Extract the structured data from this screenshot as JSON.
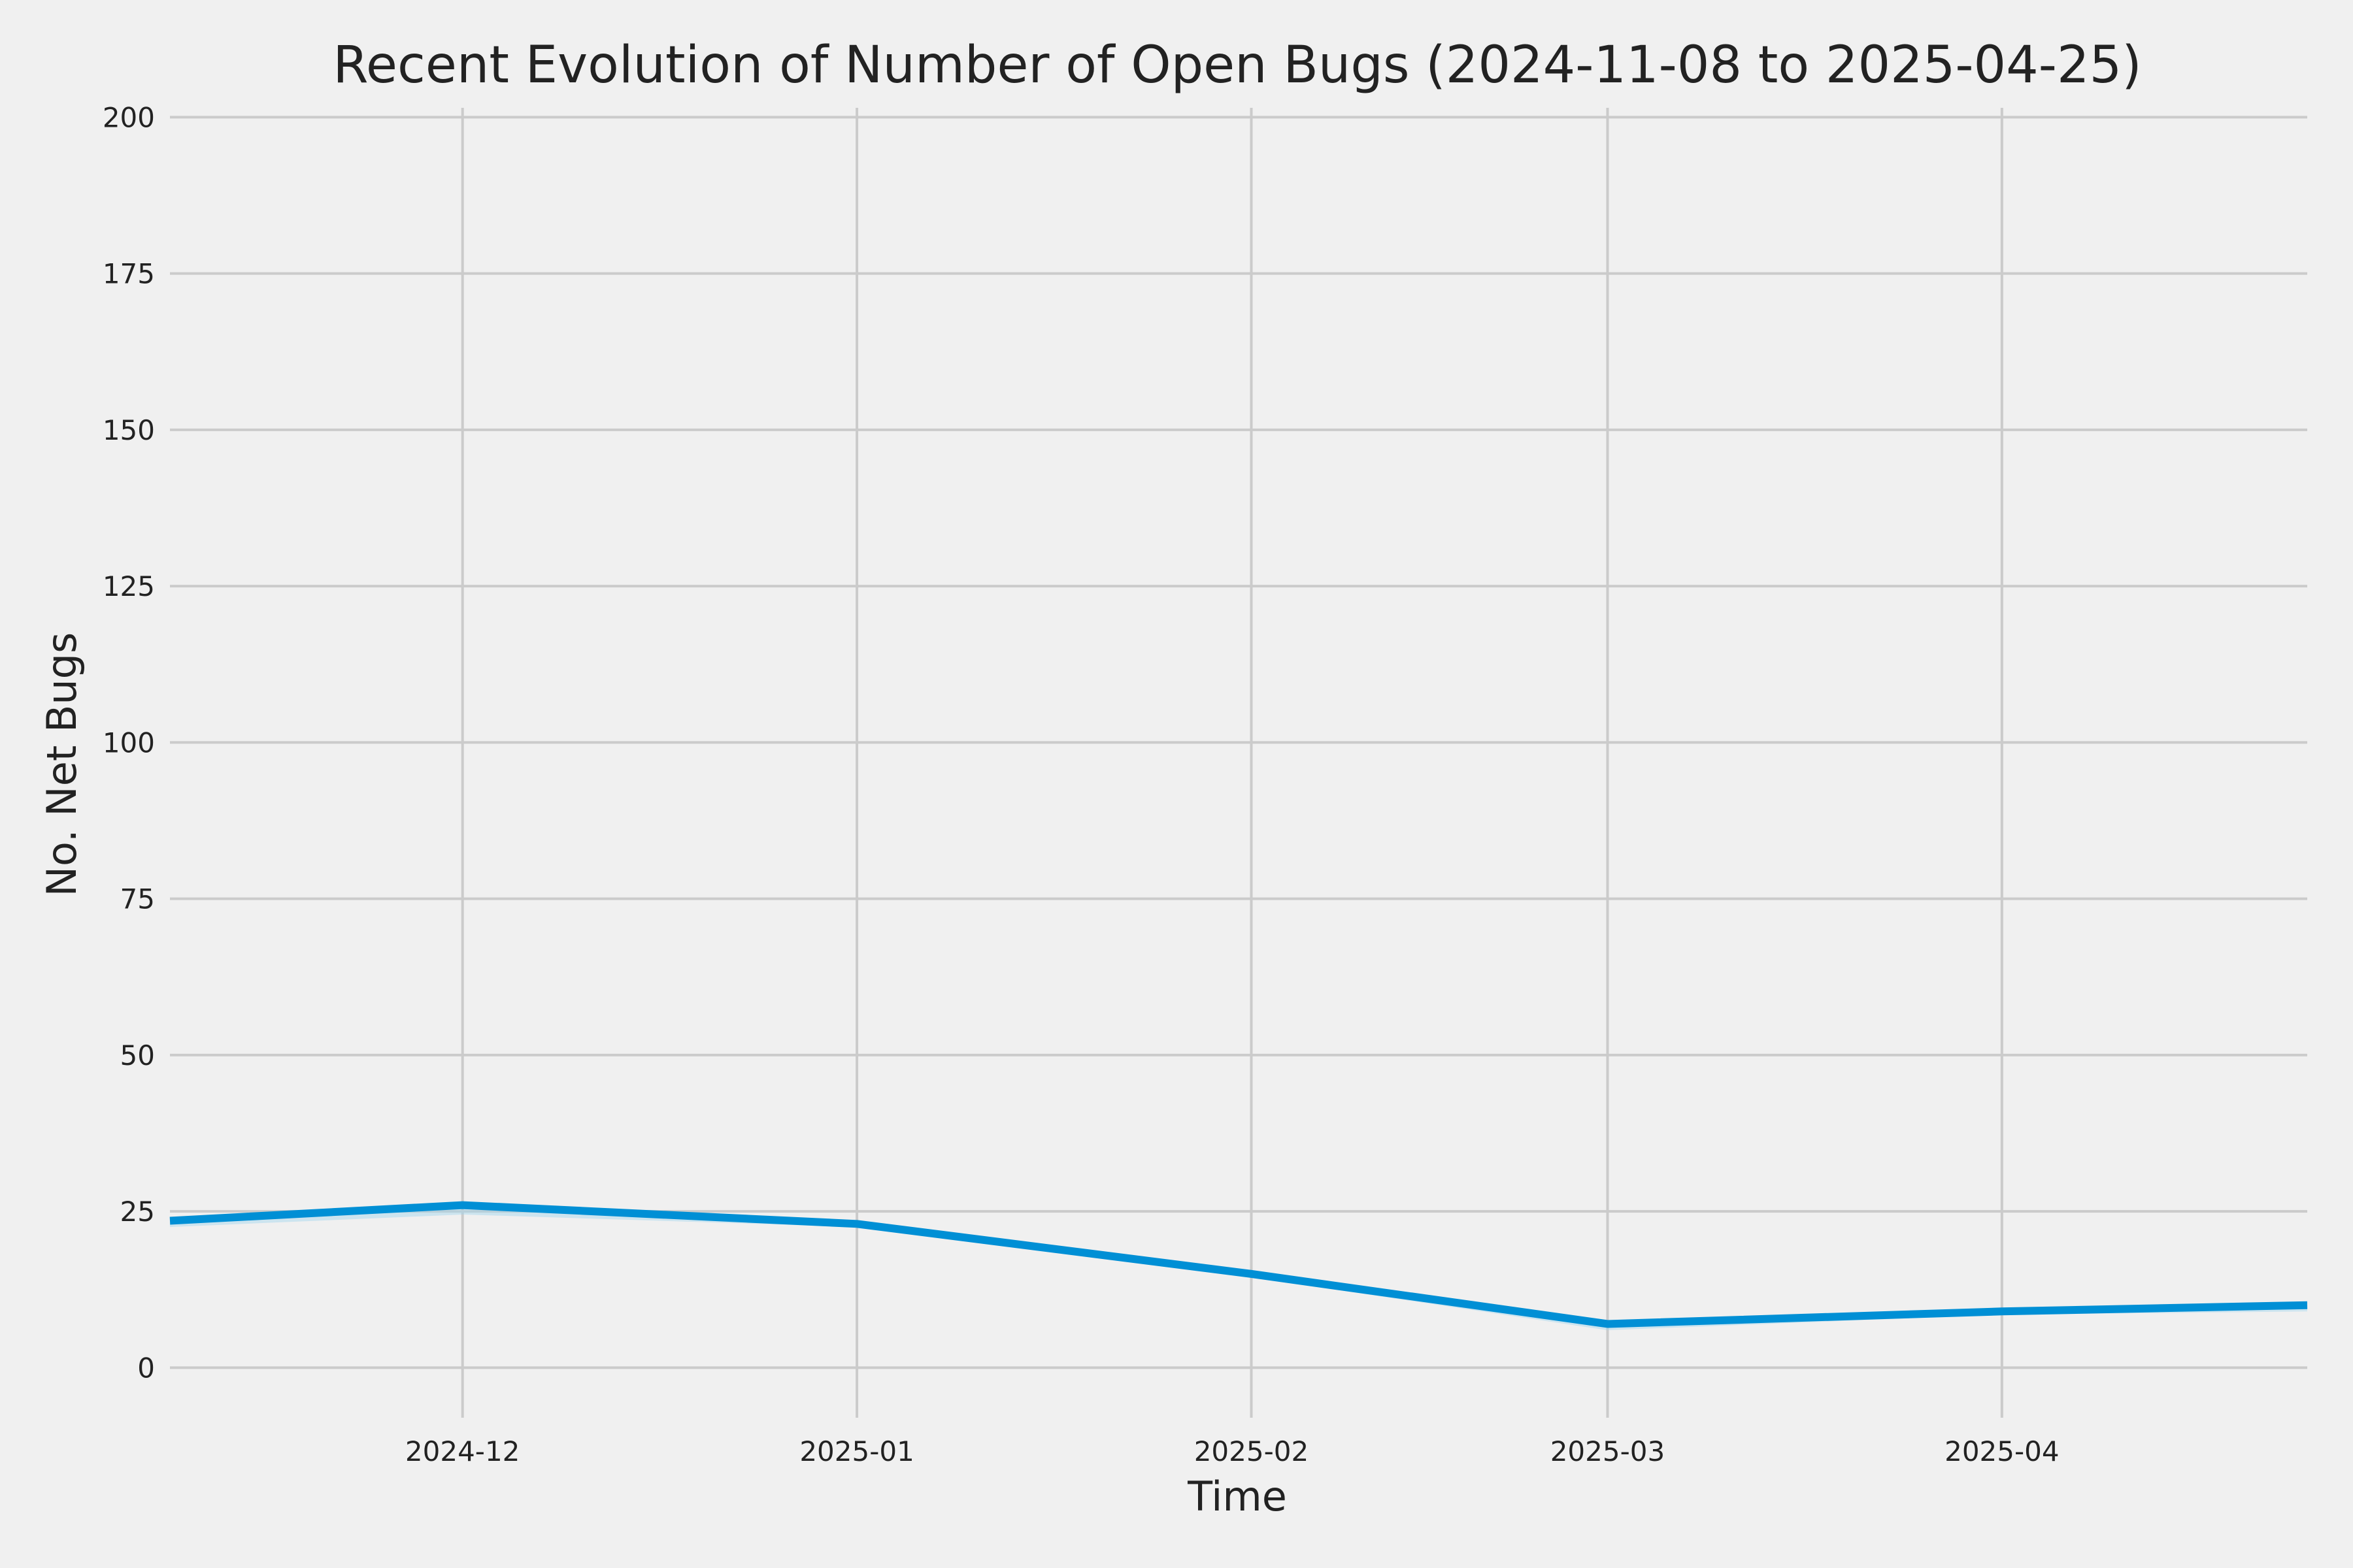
{
  "chart_data": {
    "type": "line",
    "title": "Recent Evolution of Number of Open Bugs (2024-11-08 to 2025-04-25)",
    "xlabel": "Time",
    "ylabel": "No. Net Bugs",
    "xlim": [
      "2024-11-08",
      "2025-04-25"
    ],
    "ylim": [
      -8,
      201.5
    ],
    "grid": true,
    "line_color": "#008fd5",
    "band_color": "#9fd4ee",
    "x_ticks": [
      {
        "date": "2024-12-01",
        "label": "2024-12"
      },
      {
        "date": "2025-01-01",
        "label": "2025-01"
      },
      {
        "date": "2025-02-01",
        "label": "2025-02"
      },
      {
        "date": "2025-03-01",
        "label": "2025-03"
      },
      {
        "date": "2025-04-01",
        "label": "2025-04"
      }
    ],
    "y_ticks": [
      0,
      25,
      50,
      75,
      100,
      125,
      150,
      175,
      200
    ],
    "series": [
      {
        "x": [
          "2024-11-08",
          "2024-12-01",
          "2025-01-01",
          "2025-02-01",
          "2025-03-01",
          "2025-04-01",
          "2025-04-25"
        ],
        "values": [
          23.5,
          26,
          23,
          15,
          7,
          9,
          10
        ],
        "lower": [
          22.5,
          24.5,
          22.5,
          14.5,
          6,
          8.5,
          9
        ]
      }
    ]
  }
}
